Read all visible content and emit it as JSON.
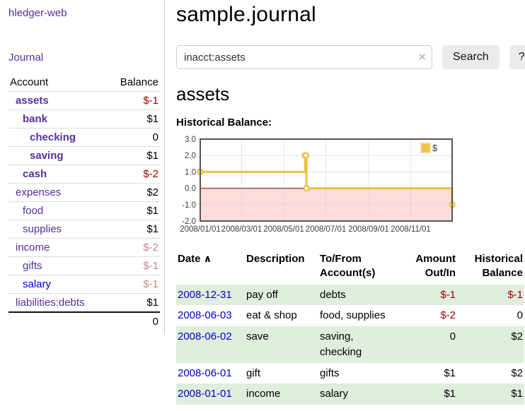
{
  "brand": "hledger-web",
  "nav": {
    "journal": "Journal"
  },
  "page": {
    "title": "sample.journal",
    "account_heading": "assets",
    "chart_label": "Historical Balance:"
  },
  "search": {
    "value": "inacct:assets",
    "clear_icon": "×",
    "search_button": "Search",
    "help_button": "?"
  },
  "colors": {
    "link_purple": "#55309b",
    "link_blue": "#0000cc",
    "negative_strong": "#990000",
    "negative_dim": "#c9858c",
    "row_stripe_green": "#dfeedd"
  },
  "sidebar": {
    "header": {
      "account": "Account",
      "balance": "Balance"
    },
    "accounts": [
      {
        "name": "assets",
        "balance": "$-1",
        "depth": 1
      },
      {
        "name": "bank",
        "balance": "$1",
        "depth": 2
      },
      {
        "name": "checking",
        "balance": "0",
        "depth": 3
      },
      {
        "name": "saving",
        "balance": "$1",
        "depth": 3
      },
      {
        "name": "cash",
        "balance": "$-2",
        "depth": 2
      },
      {
        "name": "expenses",
        "balance": "$2",
        "depth": 1
      },
      {
        "name": "food",
        "balance": "$1",
        "depth": 2
      },
      {
        "name": "supplies",
        "balance": "$1",
        "depth": 2
      },
      {
        "name": "income",
        "balance": "$-2",
        "depth": 1
      },
      {
        "name": "gifts",
        "balance": "$-1",
        "depth": 2
      },
      {
        "name": "salary",
        "balance": "$-1",
        "depth": 2
      },
      {
        "name": "liabilities:debts",
        "balance": "$1",
        "depth": 1
      }
    ],
    "total": "0"
  },
  "register": {
    "sort_indicator": "∧",
    "columns": [
      "Date",
      "Description",
      "To/From Account(s)",
      "Amount Out/In",
      "Historical Balance"
    ],
    "rows": [
      {
        "date": "2008-12-31",
        "description": "pay off",
        "accounts": "debts",
        "amount": "$-1",
        "balance": "$-1"
      },
      {
        "date": "2008-06-03",
        "description": "eat & shop",
        "accounts": "food, supplies",
        "amount": "$-2",
        "balance": "0"
      },
      {
        "date": "2008-06-02",
        "description": "save",
        "accounts": "saving, checking",
        "amount": "0",
        "balance": "$2"
      },
      {
        "date": "2008-06-01",
        "description": "gift",
        "accounts": "gifts",
        "amount": "$1",
        "balance": "$2"
      },
      {
        "date": "2008-01-01",
        "description": "income",
        "accounts": "salary",
        "amount": "$1",
        "balance": "$1"
      }
    ]
  },
  "chart_data": {
    "type": "line",
    "style": "steps",
    "title": "Historical Balance",
    "series": [
      {
        "name": "$",
        "color": "#edc240",
        "points": [
          [
            "2008-01-01",
            1
          ],
          [
            "2008-06-01",
            2
          ],
          [
            "2008-06-02",
            2
          ],
          [
            "2008-06-03",
            0
          ],
          [
            "2008-12-31",
            -1
          ]
        ]
      }
    ],
    "xlim": [
      "2008-01-01",
      "2008-12-31"
    ],
    "ylim": [
      -2,
      3
    ],
    "y_ticks": [
      3.0,
      2.0,
      1.0,
      0.0,
      -1.0,
      -2.0
    ],
    "x_ticks": [
      "2008/01/01",
      "2008/03/01",
      "2008/05/01",
      "2008/07/01",
      "2008/09/01",
      "2008/11/01"
    ],
    "grid": true,
    "legend_position": "top-right",
    "axis_color": "#545454",
    "grid_color": "#cfcfcf",
    "zero_line_color": "#8b0000",
    "negative_region_color": "#ffdddd",
    "border_color": "#545454"
  }
}
